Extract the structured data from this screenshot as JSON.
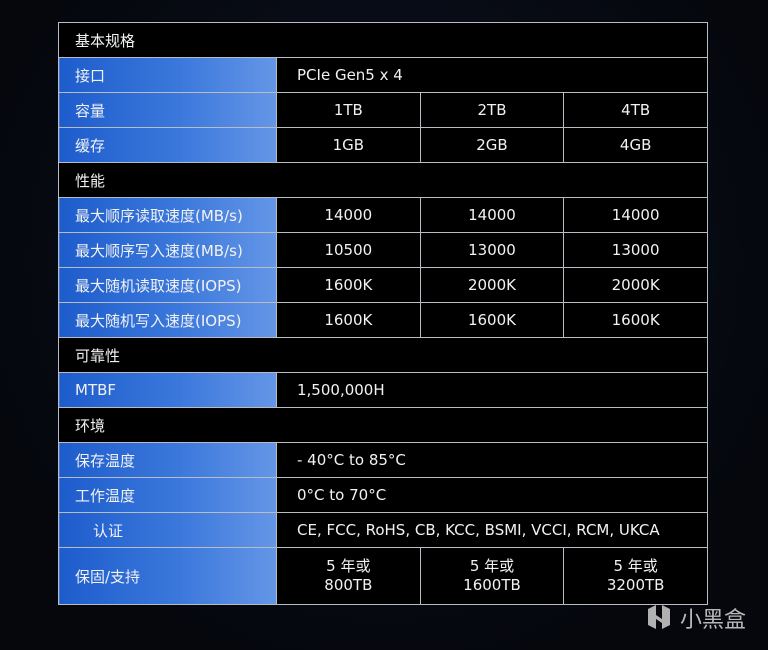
{
  "rows": [
    {
      "type": "section",
      "label": "基本规格"
    },
    {
      "type": "span",
      "label": "接口",
      "value": "PCIe Gen5 x 4"
    },
    {
      "type": "triple",
      "label": "容量",
      "values": [
        "1TB",
        "2TB",
        "4TB"
      ]
    },
    {
      "type": "triple",
      "label": "缓存",
      "values": [
        "1GB",
        "2GB",
        "4GB"
      ]
    },
    {
      "type": "section",
      "label": "性能"
    },
    {
      "type": "triple",
      "label": "最大顺序读取速度(MB/s)",
      "values": [
        "14000",
        "14000",
        "14000"
      ]
    },
    {
      "type": "triple",
      "label": "最大顺序写入速度(MB/s)",
      "values": [
        "10500",
        "13000",
        "13000"
      ]
    },
    {
      "type": "triple",
      "label": "最大随机读取速度(IOPS)",
      "values": [
        "1600K",
        "2000K",
        "2000K"
      ]
    },
    {
      "type": "triple",
      "label": "最大随机写入速度(IOPS)",
      "values": [
        "1600K",
        "1600K",
        "1600K"
      ]
    },
    {
      "type": "section",
      "label": "可靠性"
    },
    {
      "type": "span",
      "label": "MTBF",
      "value": "1,500,000H"
    },
    {
      "type": "section",
      "label": "环境"
    },
    {
      "type": "span",
      "label": "保存温度",
      "value": "- 40°C to 85°C"
    },
    {
      "type": "span",
      "label": "工作温度",
      "value": "0°C to 70°C"
    },
    {
      "type": "span",
      "label": "认证",
      "value": "CE, FCC, RoHS, CB, KCC, BSMI, VCCI, RCM, UKCA",
      "indent": true
    },
    {
      "type": "triple",
      "label": "保固/支持",
      "values": [
        "5 年或\n800TB",
        "5 年或\n1600TB",
        "5 年或\n3200TB"
      ],
      "multi": true
    }
  ],
  "watermark": {
    "text": "小黑盒",
    "icon": "heybox-logo-icon"
  }
}
